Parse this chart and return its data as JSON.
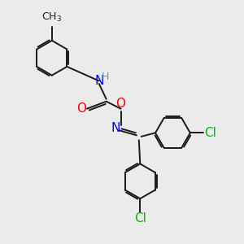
{
  "bg_color": "#ebebeb",
  "bond_color": "#1a1a1a",
  "N_color": "#0000ff",
  "O_color": "#ff0000",
  "Cl_color": "#00bb00",
  "H_color": "#6699aa",
  "font_size": 11,
  "figsize": [
    3.0,
    3.0
  ],
  "dpi": 100,
  "xlim": [
    0,
    10
  ],
  "ylim": [
    0,
    10
  ]
}
